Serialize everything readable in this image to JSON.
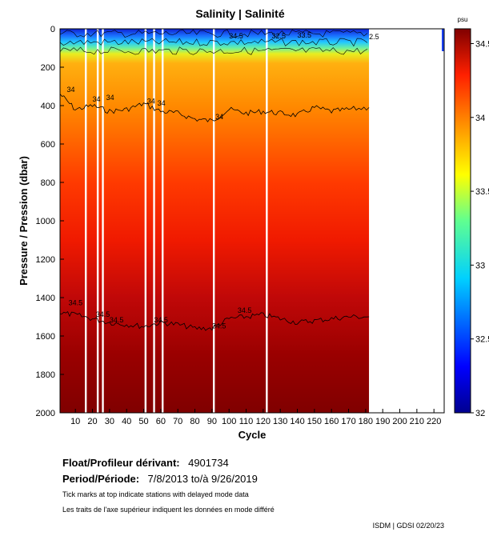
{
  "chart_data": {
    "type": "heatmap",
    "title": "Salinity | Salinité",
    "xlabel": "Cycle",
    "ylabel": "Pressure / Pression (dbar)",
    "xlim": [
      1,
      226
    ],
    "ylim": [
      2000,
      0
    ],
    "x_ticks": [
      "10",
      "20",
      "30",
      "40",
      "50",
      "60",
      "70",
      "80",
      "90",
      "100",
      "110",
      "120",
      "130",
      "140",
      "150",
      "160",
      "170",
      "180",
      "190",
      "200",
      "210",
      "220"
    ],
    "x_tick_values": [
      10,
      20,
      30,
      40,
      50,
      60,
      70,
      80,
      90,
      100,
      110,
      120,
      130,
      140,
      150,
      160,
      170,
      180,
      190,
      200,
      210,
      220
    ],
    "y_ticks": [
      "0",
      "200",
      "400",
      "600",
      "800",
      "1000",
      "1200",
      "1400",
      "1600",
      "1800",
      "2000"
    ],
    "y_tick_values": [
      0,
      200,
      400,
      600,
      800,
      1000,
      1200,
      1400,
      1600,
      1800,
      2000
    ],
    "data_cycle_range": [
      1,
      182
    ],
    "gap_cycles": [
      16,
      23,
      26,
      51,
      56,
      61,
      91,
      122
    ],
    "colorbar": {
      "unit": "psu",
      "range": [
        32,
        34.6
      ],
      "ticks": [
        "32",
        "32.5",
        "33",
        "33.5",
        "34",
        "34.5"
      ],
      "tick_values": [
        32,
        32.5,
        33,
        33.5,
        34,
        34.5
      ]
    },
    "contours": [
      {
        "level": "34",
        "cycles": [
          1,
          10,
          20,
          30,
          40,
          50,
          60,
          70,
          80,
          90,
          100,
          110,
          120,
          130,
          140,
          150,
          160,
          170,
          182
        ],
        "pressure": [
          340,
          420,
          400,
          430,
          420,
          390,
          430,
          440,
          470,
          480,
          420,
          440,
          430,
          440,
          450,
          410,
          430,
          420,
          410
        ]
      },
      {
        "level": "34.5",
        "cycles": [
          1,
          10,
          20,
          30,
          40,
          50,
          60,
          70,
          80,
          90,
          100,
          110,
          120,
          130,
          140,
          150,
          160,
          170,
          182
        ],
        "pressure": [
          1480,
          1490,
          1510,
          1530,
          1540,
          1550,
          1530,
          1540,
          1560,
          1560,
          1510,
          1500,
          1490,
          1510,
          1530,
          1520,
          1510,
          1500,
          1500
        ]
      }
    ],
    "contour_labels": [
      "34",
      "34",
      "34",
      "34",
      "34",
      "34",
      "34.5",
      "34.5",
      "34.5",
      "34.5",
      "34.5",
      "34.5",
      "32.5",
      "33.5",
      "34.5",
      "2.5"
    ]
  },
  "info": {
    "float_label": "Float/Profileur dérivant:",
    "float_value": "4901734",
    "period_label": "Period/Période:",
    "period_value": "7/8/2013  to/à  9/26/2019",
    "note_en": "Tick marks at top indicate stations with delayed mode data",
    "note_fr": "Les traits de l'axe supérieur indiquent les données en mode différé"
  },
  "footer": "ISDM | GDSI  02/20/23",
  "colors": {
    "surface_fresh": "#1a2bd6",
    "mid": "#ff8c00",
    "deep_saline": "#8b0000",
    "contour": "#000000"
  }
}
